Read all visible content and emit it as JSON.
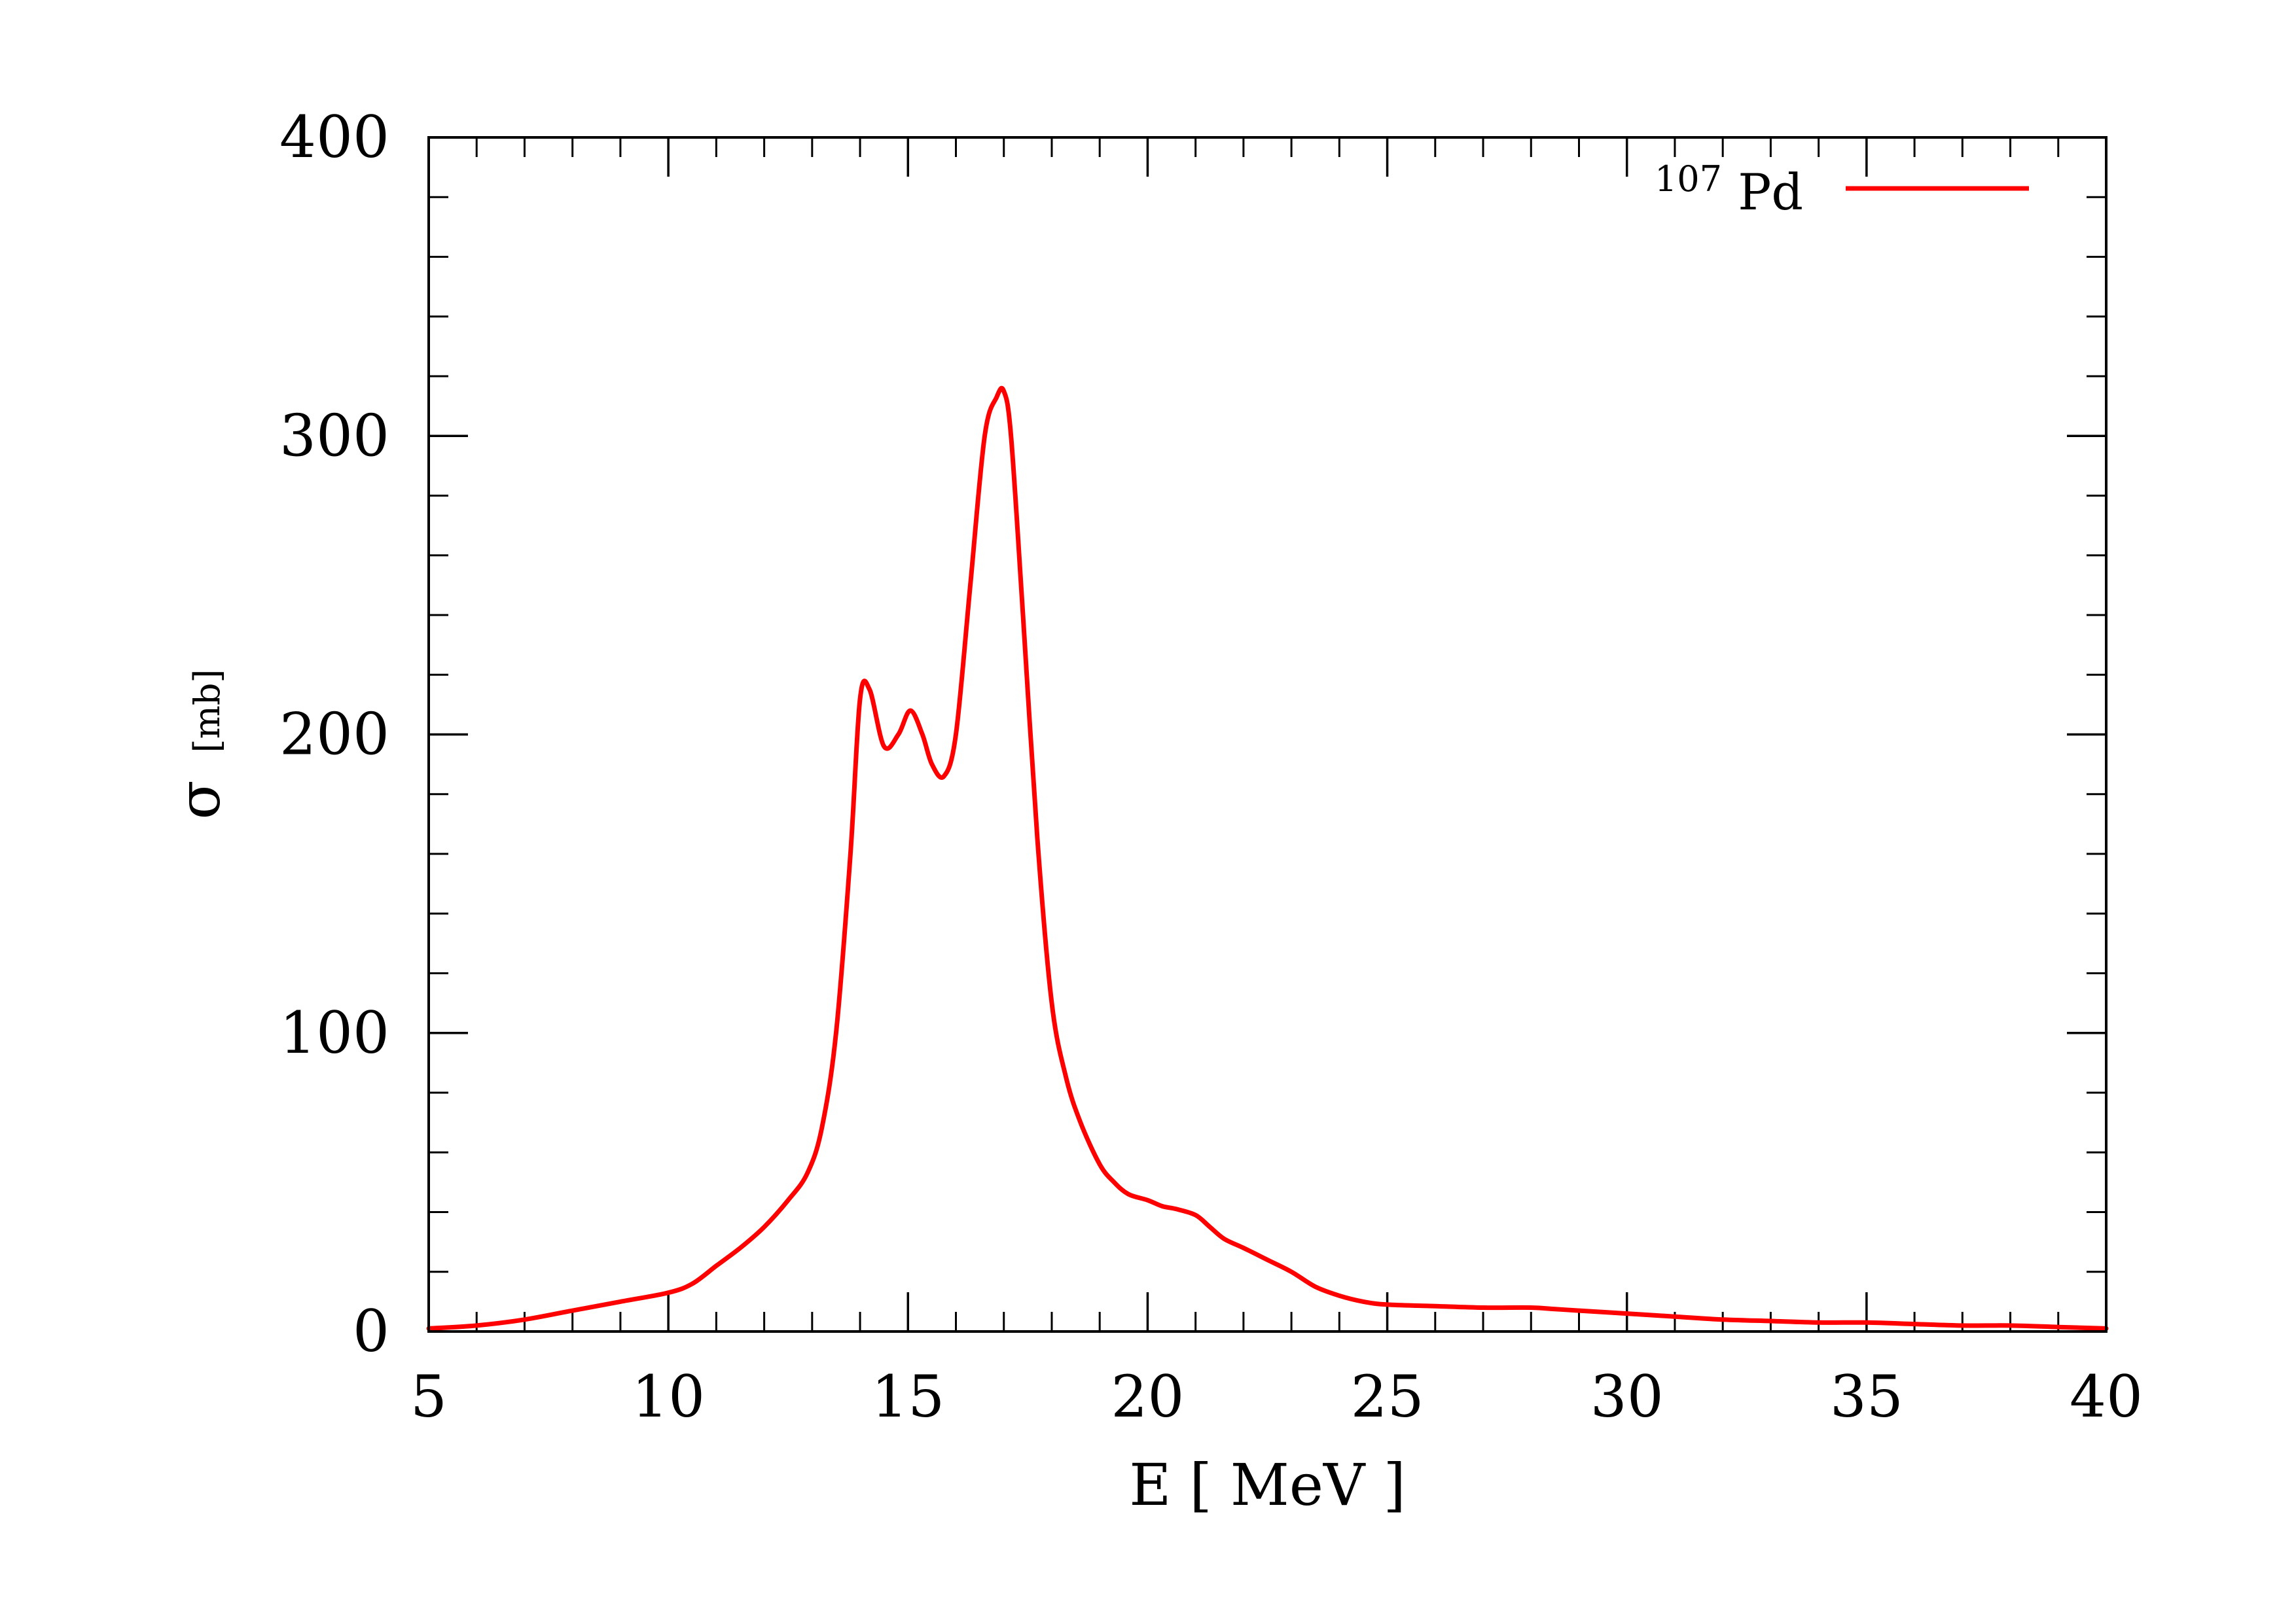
{
  "chart_data": {
    "type": "line",
    "xlabel": "E [ MeV ]",
    "ylabel_symbol": "σ",
    "ylabel_unit": "[mb]",
    "xlim": [
      5,
      40
    ],
    "ylim": [
      0,
      400
    ],
    "x_ticks": [
      5,
      10,
      15,
      20,
      25,
      30,
      35,
      40
    ],
    "y_ticks": [
      0,
      100,
      200,
      300,
      400
    ],
    "x_minor_step": 1,
    "y_minor_step": 20,
    "grid": false,
    "legend_position": "top-right",
    "series": [
      {
        "name_sup": "107",
        "name_base": "Pd",
        "color": "#ff0000",
        "x": [
          5,
          6,
          7,
          8,
          9,
          10,
          10.5,
          11,
          11.5,
          12,
          12.5,
          12.9,
          13.2,
          13.5,
          13.8,
          14.0,
          14.2,
          14.5,
          14.8,
          15.05,
          15.3,
          15.5,
          15.75,
          16.0,
          16.3,
          16.6,
          16.85,
          17.0,
          17.15,
          17.4,
          17.7,
          18.0,
          18.3,
          18.6,
          19.0,
          19.3,
          19.6,
          20.0,
          20.3,
          20.6,
          21.0,
          21.3,
          21.6,
          22.0,
          22.5,
          23.0,
          23.5,
          24.0,
          24.5,
          25.0,
          26.0,
          27.0,
          28.0,
          28.5,
          29.0,
          30.0,
          31.0,
          32.0,
          33.0,
          34.0,
          35.0,
          36.0,
          37.0,
          38.0,
          39.0,
          40.0
        ],
        "y": [
          1,
          2,
          4,
          7,
          10,
          13,
          16,
          22,
          28,
          35,
          44,
          53,
          68,
          100,
          160,
          212,
          215,
          196,
          200,
          208,
          200,
          190,
          186,
          200,
          250,
          300,
          313,
          315,
          300,
          240,
          165,
          110,
          85,
          70,
          56,
          50,
          46,
          44,
          42,
          41,
          39,
          35,
          31,
          28,
          24,
          20,
          15,
          12,
          10,
          9,
          8.5,
          8,
          8,
          7.5,
          7,
          6,
          5,
          4,
          3.5,
          3,
          3,
          2.5,
          2,
          2,
          1.5,
          1
        ]
      }
    ]
  }
}
